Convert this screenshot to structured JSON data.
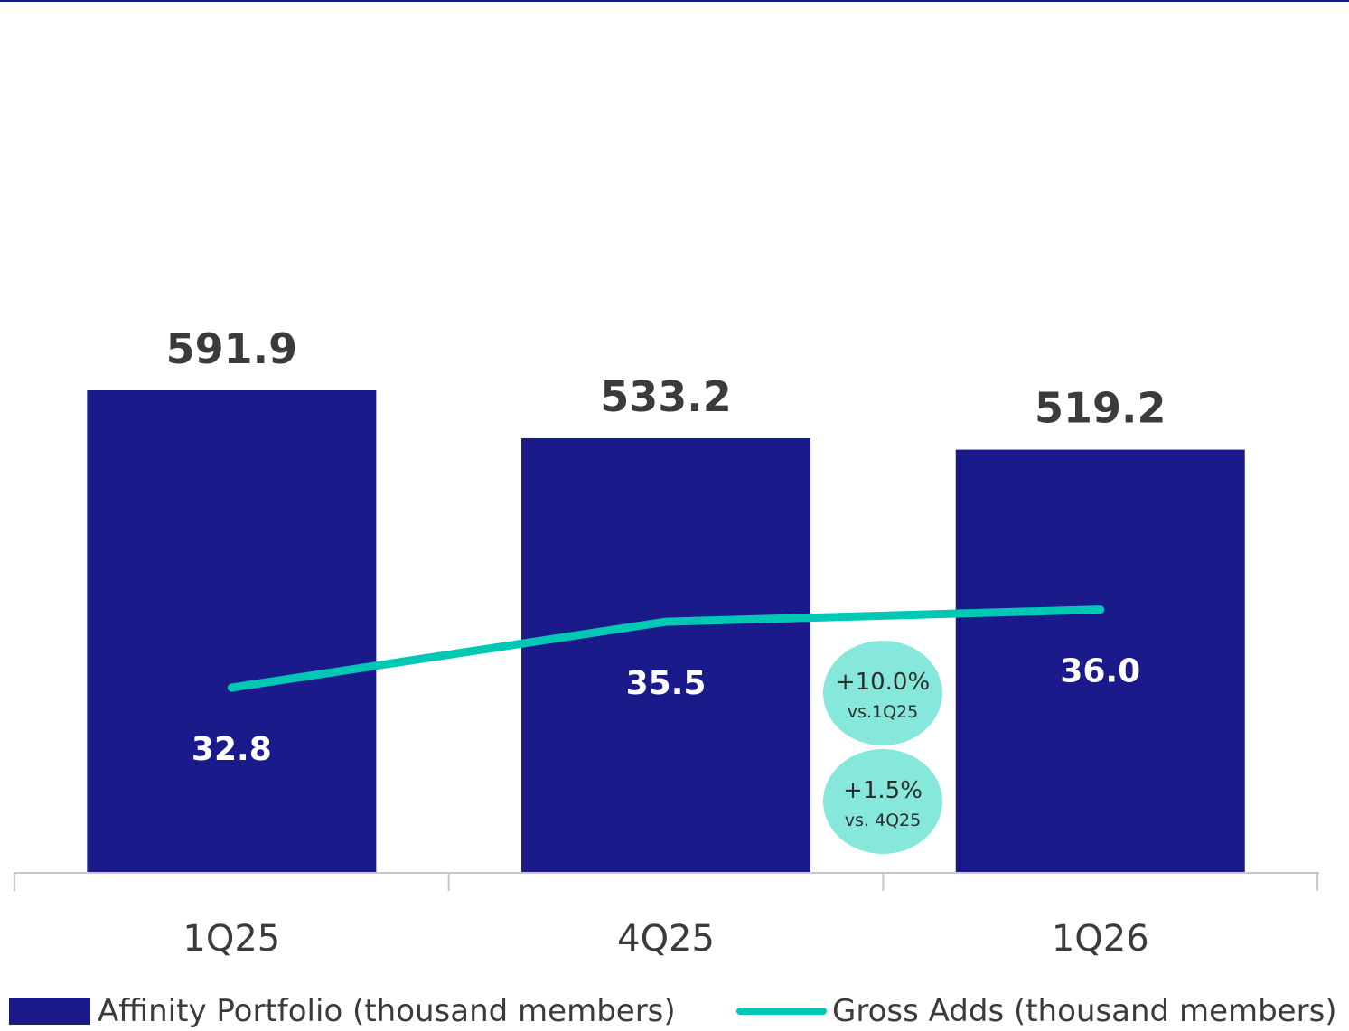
{
  "chart_data": {
    "type": "bar",
    "categories": [
      "1Q25",
      "4Q25",
      "1Q26"
    ],
    "series": [
      {
        "name": "Affinity Portfolio (thousand members)",
        "type": "bar",
        "values": [
          591.9,
          533.2,
          519.2
        ],
        "labels": [
          "591.9",
          "533.2",
          "519.2"
        ]
      },
      {
        "name": "Gross Adds (thousand members)",
        "type": "line",
        "values": [
          32.8,
          35.5,
          36.0
        ],
        "labels": [
          "32.8",
          "35.5",
          "36.0"
        ]
      }
    ],
    "annotations": [
      {
        "main": "+10.0%",
        "sub": "vs.1Q25"
      },
      {
        "main": "+1.5%",
        "sub": "vs. 4Q25"
      }
    ],
    "legend_position": "bottom",
    "grid": false,
    "colors": {
      "bar": "#1a1a8a",
      "line": "#00c8b4",
      "bubble": "#85e8da",
      "axis": "#c8c8c8"
    }
  },
  "legend": {
    "bar_label": "Affinity Portfolio (thousand members)",
    "line_label": "Gross Adds (thousand members)"
  }
}
